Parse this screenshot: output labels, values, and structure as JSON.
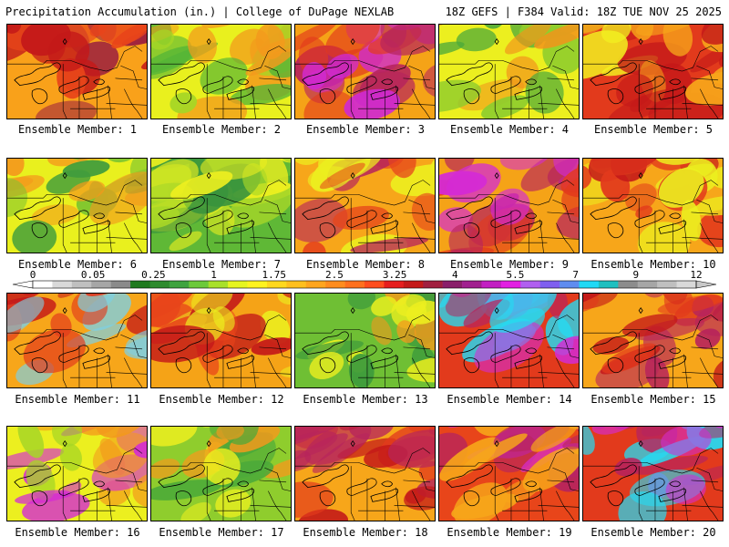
{
  "header": {
    "left": "Precipitation Accumulation (in.) | College of DuPage NEXLAB",
    "right": "18Z GEFS | F384 Valid: 18Z TUE NOV 25 2025"
  },
  "caption_prefix": "Ensemble Member:",
  "members": [
    {
      "id": 1,
      "label": "Ensemble Member: 1",
      "palette": [
        "#f9a11a",
        "#e8451a",
        "#c41919",
        "#9c1f3f"
      ]
    },
    {
      "id": 2,
      "label": "Ensemble Member: 2",
      "palette": [
        "#e9f01e",
        "#a6d626",
        "#52b437",
        "#f39a1c"
      ]
    },
    {
      "id": 3,
      "label": "Ensemble Member: 3",
      "palette": [
        "#f5a317",
        "#e23a1c",
        "#b7245c",
        "#d02ad0"
      ]
    },
    {
      "id": 4,
      "label": "Ensemble Member: 4",
      "palette": [
        "#ecef1f",
        "#8fcd2d",
        "#4ba93a",
        "#f2941b"
      ]
    },
    {
      "id": 5,
      "label": "Ensemble Member: 5",
      "palette": [
        "#e23a1c",
        "#c41919",
        "#f7a61a",
        "#f2ef1f"
      ]
    },
    {
      "id": 6,
      "label": "Ensemble Member: 6",
      "palette": [
        "#e9f01e",
        "#7dc530",
        "#3f9c3c",
        "#f39a1c"
      ]
    },
    {
      "id": 7,
      "label": "Ensemble Member: 7",
      "palette": [
        "#5fb836",
        "#3a943d",
        "#a9d727",
        "#eef01f"
      ]
    },
    {
      "id": 8,
      "label": "Ensemble Member: 8",
      "palette": [
        "#f7a61a",
        "#e6461b",
        "#ecef1f",
        "#b7245c"
      ]
    },
    {
      "id": 9,
      "label": "Ensemble Member: 9",
      "palette": [
        "#f5a317",
        "#e23a1c",
        "#b7245c",
        "#d42bd4"
      ]
    },
    {
      "id": 10,
      "label": "Ensemble Member: 10",
      "palette": [
        "#f7a61a",
        "#e23a1c",
        "#ecef1f",
        "#c41919"
      ]
    },
    {
      "id": 11,
      "label": "Ensemble Member: 11",
      "palette": [
        "#f7a61a",
        "#e23a1c",
        "#c41919",
        "#7fcfe0"
      ]
    },
    {
      "id": 12,
      "label": "Ensemble Member: 12",
      "palette": [
        "#f5a317",
        "#e8451a",
        "#ecef1f",
        "#c41919"
      ]
    },
    {
      "id": 13,
      "label": "Ensemble Member: 13",
      "palette": [
        "#6fbf34",
        "#3f9c3c",
        "#ecef1f",
        "#f39a1c"
      ]
    },
    {
      "id": 14,
      "label": "Ensemble Member: 14",
      "palette": [
        "#e23a1c",
        "#b7245c",
        "#d42bd4",
        "#27d9f0"
      ]
    },
    {
      "id": 15,
      "label": "Ensemble Member: 15",
      "palette": [
        "#f7a61a",
        "#e23a1c",
        "#c41919",
        "#b7245c"
      ]
    },
    {
      "id": 16,
      "label": "Ensemble Member: 16",
      "palette": [
        "#ecef1f",
        "#a6d626",
        "#f39a1c",
        "#d42bd4"
      ]
    },
    {
      "id": 17,
      "label": "Ensemble Member: 17",
      "palette": [
        "#8fcd2d",
        "#4ba93a",
        "#ecef1f",
        "#f39a1c"
      ]
    },
    {
      "id": 18,
      "label": "Ensemble Member: 18",
      "palette": [
        "#f7a61a",
        "#e23a1c",
        "#c41919",
        "#b7245c"
      ]
    },
    {
      "id": 19,
      "label": "Ensemble Member: 19",
      "palette": [
        "#e8451a",
        "#b7245c",
        "#d42bd4",
        "#f7a61a"
      ]
    },
    {
      "id": 20,
      "label": "Ensemble Member: 20",
      "palette": [
        "#e23a1c",
        "#b7245c",
        "#d42bd4",
        "#27d9f0"
      ]
    }
  ],
  "colorbar": {
    "labels": [
      "0",
      "0.05",
      "0.25",
      "1",
      "1.75",
      "2.5",
      "3.25",
      "4",
      "5.5",
      "7",
      "9",
      "12"
    ],
    "colors": [
      "#ffffff",
      "#d9d9d9",
      "#bfbfbf",
      "#a6a6a6",
      "#8a8a8a",
      "#1f7a1f",
      "#2e8b2e",
      "#3fa33f",
      "#6cc93a",
      "#a8e02a",
      "#e6f51f",
      "#fff31f",
      "#ffd81e",
      "#ffbf1e",
      "#ffa51e",
      "#ff8c1e",
      "#ff701e",
      "#ff4d1e",
      "#e61e1e",
      "#c41919",
      "#a11f3f",
      "#8a1f6a",
      "#a1208f",
      "#c21fc2",
      "#e21fe2",
      "#b05ff0",
      "#7f5ff0",
      "#5f8cf0",
      "#1fd9f5",
      "#1fbfbf",
      "#8c8c8c",
      "#a6a6a6",
      "#bfbfbf",
      "#d9d9d9"
    ]
  }
}
